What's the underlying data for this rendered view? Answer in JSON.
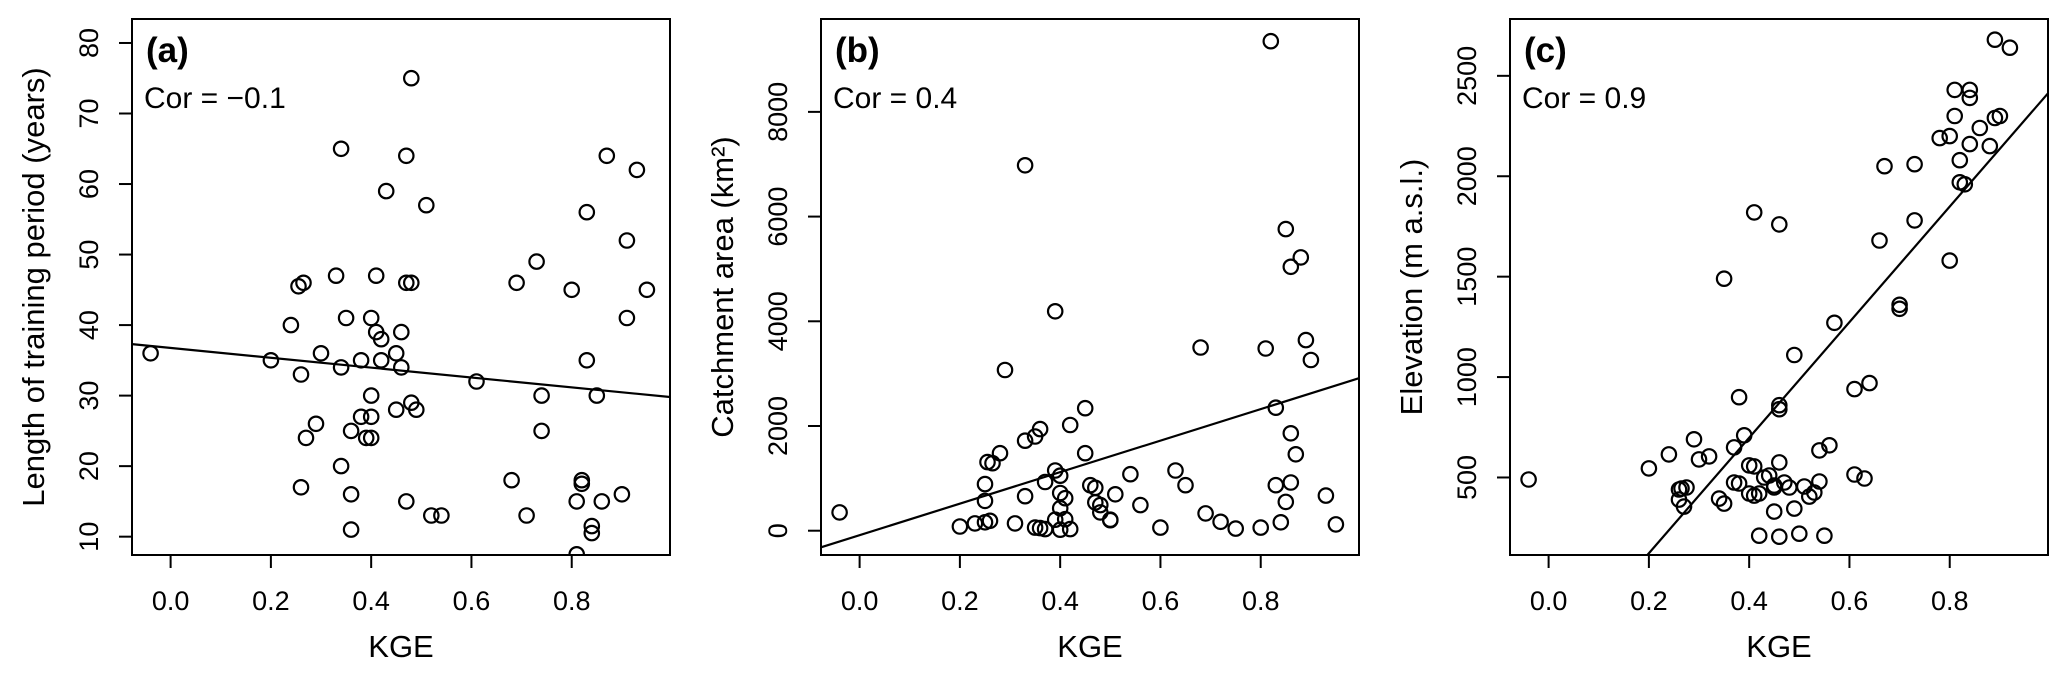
{
  "figure": {
    "background_color": "#ffffff",
    "ink_color": "#000000",
    "marker_shape": "open-circle",
    "x_axis_shared_label": "KGE"
  },
  "chart_data": [
    {
      "type": "scatter",
      "panel_tag": "(a)",
      "annotation": "Cor = −0.1",
      "correlation": -0.1,
      "xlabel": "KGE",
      "ylabel": "Length of training period (years)",
      "xlim": [
        -0.077,
        0.996
      ],
      "ylim": [
        7.4,
        83.4
      ],
      "grid": false,
      "xticks": {
        "values": [
          0,
          0.2,
          0.4,
          0.6,
          0.8
        ],
        "labels": [
          "0.0",
          "0.2",
          "0.4",
          "0.6",
          "0.8"
        ]
      },
      "yticks": {
        "values": [
          10,
          20,
          30,
          40,
          50,
          60,
          70,
          80
        ],
        "labels": [
          "10",
          "20",
          "30",
          "40",
          "50",
          "60",
          "70",
          "80"
        ]
      },
      "trend_line": {
        "x1": -0.077,
        "y1": 37.3,
        "x2": 0.996,
        "y2": 29.8
      },
      "points": [
        [
          -0.04,
          36
        ],
        [
          0.2,
          35
        ],
        [
          0.24,
          40
        ],
        [
          0.255,
          45.5
        ],
        [
          0.265,
          46
        ],
        [
          0.26,
          33
        ],
        [
          0.26,
          17
        ],
        [
          0.27,
          24
        ],
        [
          0.29,
          26
        ],
        [
          0.3,
          36
        ],
        [
          0.33,
          47
        ],
        [
          0.34,
          65
        ],
        [
          0.34,
          34
        ],
        [
          0.34,
          20
        ],
        [
          0.35,
          41
        ],
        [
          0.36,
          25
        ],
        [
          0.36,
          16
        ],
        [
          0.36,
          11
        ],
        [
          0.38,
          35
        ],
        [
          0.38,
          27
        ],
        [
          0.39,
          24
        ],
        [
          0.4,
          41
        ],
        [
          0.4,
          27
        ],
        [
          0.4,
          24
        ],
        [
          0.4,
          30
        ],
        [
          0.41,
          47
        ],
        [
          0.41,
          39
        ],
        [
          0.42,
          38
        ],
        [
          0.42,
          35
        ],
        [
          0.43,
          59
        ],
        [
          0.45,
          36
        ],
        [
          0.45,
          28
        ],
        [
          0.46,
          39
        ],
        [
          0.46,
          34
        ],
        [
          0.47,
          64
        ],
        [
          0.47,
          46
        ],
        [
          0.47,
          15
        ],
        [
          0.48,
          75
        ],
        [
          0.48,
          46
        ],
        [
          0.48,
          29
        ],
        [
          0.49,
          28
        ],
        [
          0.51,
          57
        ],
        [
          0.52,
          13
        ],
        [
          0.54,
          13
        ],
        [
          0.61,
          32
        ],
        [
          0.68,
          18
        ],
        [
          0.69,
          46
        ],
        [
          0.71,
          13
        ],
        [
          0.73,
          49
        ],
        [
          0.74,
          30
        ],
        [
          0.74,
          25
        ],
        [
          0.8,
          45
        ],
        [
          0.81,
          15
        ],
        [
          0.81,
          7.5
        ],
        [
          0.82,
          18
        ],
        [
          0.82,
          17.5
        ],
        [
          0.83,
          56
        ],
        [
          0.83,
          35
        ],
        [
          0.84,
          11.5
        ],
        [
          0.84,
          10.5
        ],
        [
          0.85,
          30
        ],
        [
          0.86,
          15
        ],
        [
          0.87,
          64
        ],
        [
          0.9,
          16
        ],
        [
          0.91,
          52
        ],
        [
          0.91,
          41
        ],
        [
          0.93,
          62
        ],
        [
          0.95,
          45
        ]
      ]
    },
    {
      "type": "scatter",
      "panel_tag": "(b)",
      "annotation": "Cor = 0.4",
      "correlation": 0.4,
      "xlabel": "KGE",
      "ylabel": "Catchment area (km²)",
      "xlim": [
        -0.077,
        0.996
      ],
      "ylim": [
        -464,
        9774
      ],
      "grid": false,
      "xticks": {
        "values": [
          0,
          0.2,
          0.4,
          0.6,
          0.8
        ],
        "labels": [
          "0.0",
          "0.2",
          "0.4",
          "0.6",
          "0.8"
        ]
      },
      "yticks": {
        "values": [
          0,
          2000,
          4000,
          6000,
          8000
        ],
        "labels": [
          "0",
          "2000",
          "4000",
          "6000",
          "8000"
        ]
      },
      "trend_line": {
        "x1": -0.077,
        "y1": -317,
        "x2": 0.996,
        "y2": 2913
      },
      "points": [
        [
          -0.04,
          350
        ],
        [
          0.2,
          80
        ],
        [
          0.23,
          140
        ],
        [
          0.25,
          160
        ],
        [
          0.26,
          190
        ],
        [
          0.25,
          890
        ],
        [
          0.25,
          570
        ],
        [
          0.255,
          1310
        ],
        [
          0.265,
          1290
        ],
        [
          0.28,
          1480
        ],
        [
          0.29,
          3070
        ],
        [
          0.31,
          140
        ],
        [
          0.33,
          1720
        ],
        [
          0.33,
          660
        ],
        [
          0.33,
          6980
        ],
        [
          0.35,
          1800
        ],
        [
          0.35,
          60
        ],
        [
          0.36,
          1940
        ],
        [
          0.36,
          50
        ],
        [
          0.37,
          930
        ],
        [
          0.37,
          30
        ],
        [
          0.39,
          4190
        ],
        [
          0.39,
          1150
        ],
        [
          0.39,
          210
        ],
        [
          0.4,
          1050
        ],
        [
          0.4,
          720
        ],
        [
          0.4,
          430
        ],
        [
          0.4,
          20
        ],
        [
          0.41,
          620
        ],
        [
          0.41,
          220
        ],
        [
          0.42,
          2020
        ],
        [
          0.42,
          30
        ],
        [
          0.45,
          2340
        ],
        [
          0.45,
          1480
        ],
        [
          0.46,
          870
        ],
        [
          0.47,
          820
        ],
        [
          0.47,
          540
        ],
        [
          0.48,
          490
        ],
        [
          0.48,
          350
        ],
        [
          0.5,
          210
        ],
        [
          0.5,
          200
        ],
        [
          0.51,
          695
        ],
        [
          0.54,
          1080
        ],
        [
          0.56,
          490
        ],
        [
          0.6,
          60
        ],
        [
          0.63,
          1150
        ],
        [
          0.65,
          870
        ],
        [
          0.68,
          3500
        ],
        [
          0.69,
          330
        ],
        [
          0.72,
          170
        ],
        [
          0.75,
          40
        ],
        [
          0.8,
          60
        ],
        [
          0.81,
          3480
        ],
        [
          0.82,
          9350
        ],
        [
          0.83,
          2350
        ],
        [
          0.83,
          870
        ],
        [
          0.84,
          160
        ],
        [
          0.85,
          550
        ],
        [
          0.85,
          5760
        ],
        [
          0.86,
          1860
        ],
        [
          0.86,
          920
        ],
        [
          0.86,
          5040
        ],
        [
          0.87,
          1460
        ],
        [
          0.88,
          5220
        ],
        [
          0.89,
          3640
        ],
        [
          0.9,
          3260
        ],
        [
          0.93,
          670
        ],
        [
          0.95,
          120
        ]
      ]
    },
    {
      "type": "scatter",
      "panel_tag": "(c)",
      "annotation": "Cor = 0.9",
      "correlation": 0.9,
      "xlabel": "KGE",
      "ylabel": "Elevation (m a.s.l.)",
      "xlim": [
        -0.077,
        0.996
      ],
      "ylim": [
        114,
        2783
      ],
      "grid": false,
      "xticks": {
        "values": [
          0,
          0.2,
          0.4,
          0.6,
          0.8
        ],
        "labels": [
          "0.0",
          "0.2",
          "0.4",
          "0.6",
          "0.8"
        ]
      },
      "yticks": {
        "values": [
          500,
          1000,
          1500,
          2000,
          2500
        ],
        "labels": [
          "500",
          "1000",
          "1500",
          "2000",
          "2500"
        ]
      },
      "trend_line": {
        "x1": 0.197,
        "y1": 114,
        "x2": 0.996,
        "y2": 2413
      },
      "points": [
        [
          -0.04,
          490
        ],
        [
          0.2,
          545
        ],
        [
          0.24,
          615
        ],
        [
          0.26,
          440
        ],
        [
          0.265,
          445
        ],
        [
          0.275,
          450
        ],
        [
          0.26,
          390
        ],
        [
          0.27,
          355
        ],
        [
          0.29,
          690
        ],
        [
          0.3,
          590
        ],
        [
          0.32,
          605
        ],
        [
          0.34,
          395
        ],
        [
          0.35,
          370
        ],
        [
          0.35,
          1490
        ],
        [
          0.37,
          475
        ],
        [
          0.38,
          470
        ],
        [
          0.37,
          650
        ],
        [
          0.38,
          900
        ],
        [
          0.39,
          710
        ],
        [
          0.4,
          560
        ],
        [
          0.41,
          555
        ],
        [
          0.4,
          420
        ],
        [
          0.41,
          410
        ],
        [
          0.42,
          420
        ],
        [
          0.41,
          1820
        ],
        [
          0.43,
          500
        ],
        [
          0.44,
          510
        ],
        [
          0.42,
          210
        ],
        [
          0.45,
          460
        ],
        [
          0.45,
          450
        ],
        [
          0.45,
          330
        ],
        [
          0.46,
          860
        ],
        [
          0.46,
          840
        ],
        [
          0.46,
          1760
        ],
        [
          0.46,
          575
        ],
        [
          0.46,
          205
        ],
        [
          0.47,
          475
        ],
        [
          0.48,
          450
        ],
        [
          0.49,
          345
        ],
        [
          0.49,
          1110
        ],
        [
          0.5,
          220
        ],
        [
          0.51,
          455
        ],
        [
          0.52,
          405
        ],
        [
          0.53,
          425
        ],
        [
          0.54,
          480
        ],
        [
          0.54,
          635
        ],
        [
          0.55,
          210
        ],
        [
          0.56,
          660
        ],
        [
          0.57,
          1270
        ],
        [
          0.61,
          515
        ],
        [
          0.63,
          495
        ],
        [
          0.61,
          940
        ],
        [
          0.64,
          970
        ],
        [
          0.66,
          1680
        ],
        [
          0.67,
          2050
        ],
        [
          0.7,
          1340
        ],
        [
          0.7,
          1360
        ],
        [
          0.73,
          2060
        ],
        [
          0.73,
          1780
        ],
        [
          0.78,
          2190
        ],
        [
          0.8,
          2200
        ],
        [
          0.8,
          1580
        ],
        [
          0.81,
          2430
        ],
        [
          0.81,
          2300
        ],
        [
          0.82,
          2080
        ],
        [
          0.82,
          1970
        ],
        [
          0.83,
          1960
        ],
        [
          0.84,
          2430
        ],
        [
          0.84,
          2390
        ],
        [
          0.84,
          2160
        ],
        [
          0.86,
          2240
        ],
        [
          0.88,
          2150
        ],
        [
          0.89,
          2680
        ],
        [
          0.89,
          2290
        ],
        [
          0.9,
          2300
        ],
        [
          0.92,
          2640
        ]
      ]
    }
  ]
}
